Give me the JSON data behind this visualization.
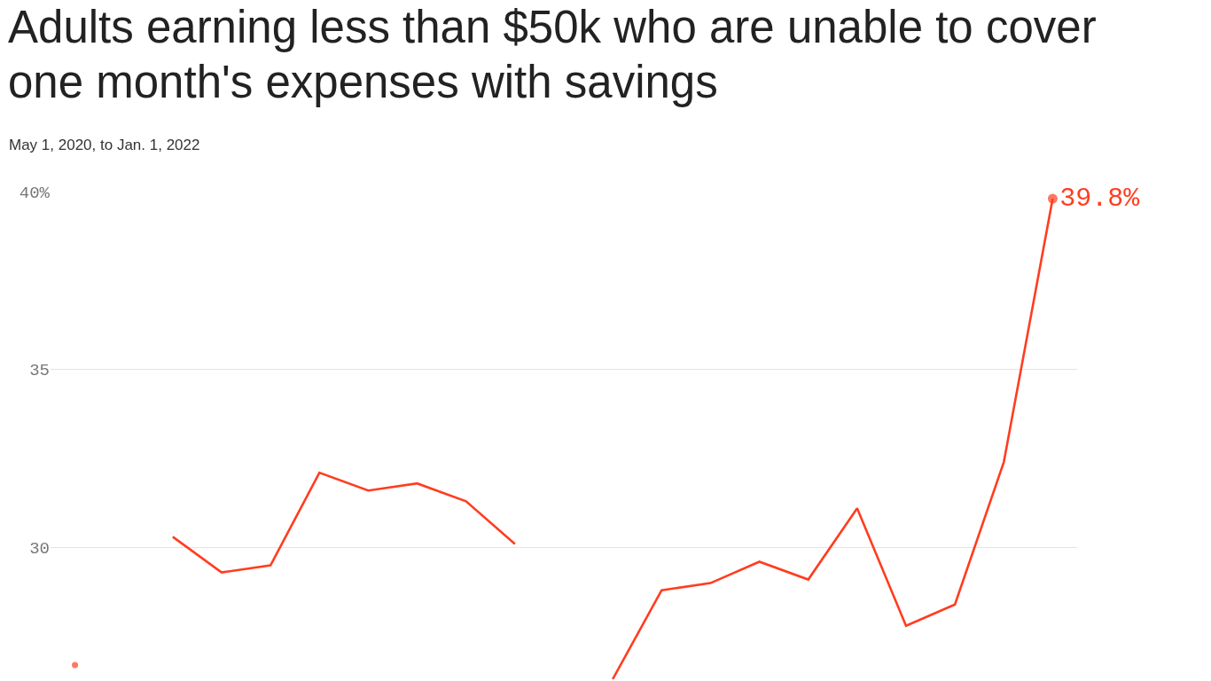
{
  "chart_data": {
    "type": "line",
    "title": "Adults earning less than $50k who are unable to cover one month's expenses with savings",
    "subtitle": "May 1, 2020, to Jan. 1, 2022",
    "categories": [
      null,
      null,
      null,
      null,
      null,
      null,
      null,
      null,
      null,
      null,
      null,
      null,
      null,
      null,
      null,
      null,
      null,
      null,
      null,
      null,
      null
    ],
    "series": [
      {
        "color": "#ff3d1f",
        "values": [
          26.7,
          null,
          30.3,
          29.3,
          29.5,
          32.1,
          31.6,
          31.8,
          31.3,
          30.1,
          null,
          26.3,
          28.8,
          29.0,
          29.6,
          29.1,
          31.1,
          27.8,
          28.4,
          32.4,
          39.8
        ],
        "value_labels": [
          null,
          null,
          null,
          null,
          null,
          null,
          null,
          null,
          null,
          null,
          null,
          null,
          null,
          null,
          null,
          null,
          null,
          null,
          null,
          null,
          "39.8%"
        ]
      }
    ],
    "ylim": [
      26.25,
      40
    ],
    "yticks": [
      {
        "value": 40,
        "label": "40%"
      },
      35,
      30
    ],
    "grid": "y",
    "tick_labels": "y",
    "line_style": "solid"
  }
}
